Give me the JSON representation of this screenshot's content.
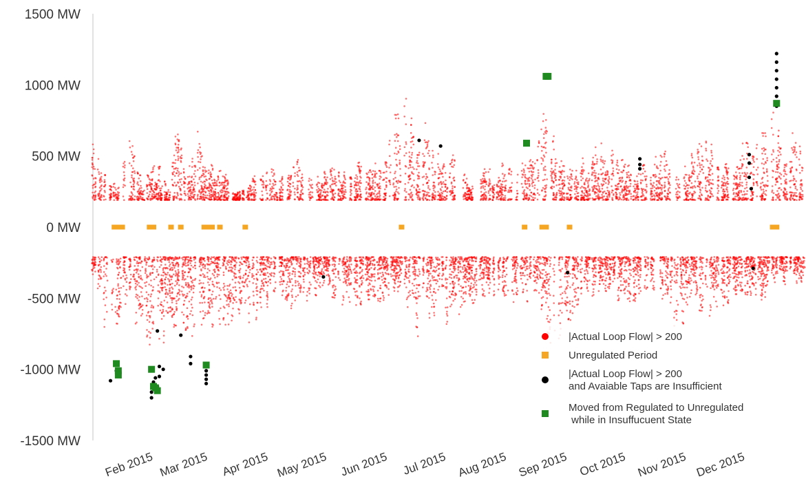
{
  "chart_data": {
    "type": "scatter",
    "title": "",
    "xlabel": "",
    "ylabel": "",
    "ylim": [
      -1500,
      1500
    ],
    "xlim": [
      "2015-01-01",
      "2015-12-31"
    ],
    "y_ticks": [
      {
        "value": 1500,
        "label": "1500 MW"
      },
      {
        "value": 1000,
        "label": "1000 MW"
      },
      {
        "value": 500,
        "label": "500 MW"
      },
      {
        "value": 0,
        "label": "0 MW"
      },
      {
        "value": -500,
        "label": "-500 MW"
      },
      {
        "value": -1000,
        "label": "-1000 MW"
      },
      {
        "value": -1500,
        "label": "-1500 MW"
      }
    ],
    "x_ticks": [
      {
        "date": "2015-02-01",
        "label": "Feb 2015"
      },
      {
        "date": "2015-03-01",
        "label": "Mar 2015"
      },
      {
        "date": "2015-04-01",
        "label": "Apr 2015"
      },
      {
        "date": "2015-05-01",
        "label": "May 2015"
      },
      {
        "date": "2015-06-01",
        "label": "Jun 2015"
      },
      {
        "date": "2015-07-01",
        "label": "Jul 2015"
      },
      {
        "date": "2015-08-01",
        "label": "Aug 2015"
      },
      {
        "date": "2015-09-01",
        "label": "Sep 2015"
      },
      {
        "date": "2015-10-01",
        "label": "Oct 2015"
      },
      {
        "date": "2015-11-01",
        "label": "Nov 2015"
      },
      {
        "date": "2015-12-01",
        "label": "Dec 2015"
      }
    ],
    "grid": false,
    "legend_position": "bottom-right",
    "series": [
      {
        "name": "|Actual Loop Flow| > 200",
        "color": "#ff0000",
        "marker": "circle",
        "note_density": "dense hourly points above +200 and below -200",
        "envelope_positive": [
          [
            "2015-01-01",
            700
          ],
          [
            "2015-01-05",
            540
          ],
          [
            "2015-01-10",
            330
          ],
          [
            "2015-01-15",
            370
          ],
          [
            "2015-01-20",
            750
          ],
          [
            "2015-01-26",
            330
          ],
          [
            "2015-02-03",
            480
          ],
          [
            "2015-02-08",
            300
          ],
          [
            "2015-02-12",
            880
          ],
          [
            "2015-02-18",
            340
          ],
          [
            "2015-02-24",
            730
          ],
          [
            "2015-03-01",
            460
          ],
          [
            "2015-03-07",
            480
          ],
          [
            "2015-03-14",
            260
          ],
          [
            "2015-03-22",
            320
          ],
          [
            "2015-03-29",
            480
          ],
          [
            "2015-04-06",
            380
          ],
          [
            "2015-04-15",
            500
          ],
          [
            "2015-04-24",
            360
          ],
          [
            "2015-05-03",
            480
          ],
          [
            "2015-05-12",
            430
          ],
          [
            "2015-05-21",
            560
          ],
          [
            "2015-05-28",
            420
          ],
          [
            "2015-06-04",
            860
          ],
          [
            "2015-06-08",
            1010
          ],
          [
            "2015-06-14",
            930
          ],
          [
            "2015-06-20",
            780
          ],
          [
            "2015-06-27",
            600
          ],
          [
            "2015-07-05",
            600
          ],
          [
            "2015-07-13",
            340
          ],
          [
            "2015-07-20",
            520
          ],
          [
            "2015-07-27",
            400
          ],
          [
            "2015-08-03",
            560
          ],
          [
            "2015-08-08",
            580
          ],
          [
            "2015-08-14",
            520
          ],
          [
            "2015-08-20",
            1070
          ],
          [
            "2015-08-26",
            620
          ],
          [
            "2015-09-01",
            500
          ],
          [
            "2015-09-07",
            440
          ],
          [
            "2015-09-14",
            660
          ],
          [
            "2015-09-21",
            580
          ],
          [
            "2015-09-28",
            640
          ],
          [
            "2015-10-06",
            420
          ],
          [
            "2015-10-14",
            480
          ],
          [
            "2015-10-20",
            570
          ],
          [
            "2015-10-28",
            380
          ],
          [
            "2015-11-05",
            630
          ],
          [
            "2015-11-12",
            780
          ],
          [
            "2015-11-19",
            470
          ],
          [
            "2015-11-26",
            540
          ],
          [
            "2015-12-02",
            640
          ],
          [
            "2015-12-09",
            720
          ],
          [
            "2015-12-16",
            900
          ],
          [
            "2015-12-22",
            690
          ],
          [
            "2015-12-29",
            720
          ]
        ],
        "envelope_negative": [
          [
            "2015-01-02",
            -400
          ],
          [
            "2015-01-06",
            -680
          ],
          [
            "2015-01-10",
            -900
          ],
          [
            "2015-01-15",
            -780
          ],
          [
            "2015-01-20",
            -600
          ],
          [
            "2015-01-26",
            -1000
          ],
          [
            "2015-02-01",
            -1100
          ],
          [
            "2015-02-05",
            -900
          ],
          [
            "2015-02-10",
            -770
          ],
          [
            "2015-02-15",
            -700
          ],
          [
            "2015-02-20",
            -800
          ],
          [
            "2015-02-24",
            -1000
          ],
          [
            "2015-03-01",
            -880
          ],
          [
            "2015-03-06",
            -680
          ],
          [
            "2015-03-12",
            -780
          ],
          [
            "2015-03-19",
            -700
          ],
          [
            "2015-03-25",
            -840
          ],
          [
            "2015-04-01",
            -660
          ],
          [
            "2015-04-09",
            -580
          ],
          [
            "2015-04-17",
            -620
          ],
          [
            "2015-04-24",
            -560
          ],
          [
            "2015-05-01",
            -500
          ],
          [
            "2015-05-08",
            -560
          ],
          [
            "2015-05-15",
            -620
          ],
          [
            "2015-05-22",
            -760
          ],
          [
            "2015-05-29",
            -720
          ],
          [
            "2015-06-05",
            -460
          ],
          [
            "2015-06-15",
            -800
          ],
          [
            "2015-06-22",
            -700
          ],
          [
            "2015-06-30",
            -700
          ],
          [
            "2015-07-08",
            -680
          ],
          [
            "2015-07-16",
            -660
          ],
          [
            "2015-07-24",
            -600
          ],
          [
            "2015-08-01",
            -540
          ],
          [
            "2015-08-09",
            -560
          ],
          [
            "2015-08-17",
            -520
          ],
          [
            "2015-08-24",
            -1010
          ],
          [
            "2015-08-30",
            -880
          ],
          [
            "2015-09-05",
            -600
          ],
          [
            "2015-09-12",
            -560
          ],
          [
            "2015-09-20",
            -500
          ],
          [
            "2015-09-27",
            -600
          ],
          [
            "2015-10-05",
            -520
          ],
          [
            "2015-10-13",
            -560
          ],
          [
            "2015-10-21",
            -600
          ],
          [
            "2015-10-28",
            -880
          ],
          [
            "2015-11-04",
            -600
          ],
          [
            "2015-11-12",
            -660
          ],
          [
            "2015-11-18",
            -620
          ],
          [
            "2015-11-25",
            -700
          ],
          [
            "2015-12-03",
            -640
          ],
          [
            "2015-12-10",
            -560
          ],
          [
            "2015-12-18",
            -400
          ],
          [
            "2015-12-25",
            -420
          ]
        ]
      },
      {
        "name": "Unregulated Period",
        "color": "#f5a623",
        "marker": "square",
        "points": [
          [
            "2015-01-12",
            0
          ],
          [
            "2015-01-14",
            0
          ],
          [
            "2015-01-16",
            0
          ],
          [
            "2015-01-30",
            0
          ],
          [
            "2015-02-01",
            0
          ],
          [
            "2015-02-10",
            0
          ],
          [
            "2015-02-15",
            0
          ],
          [
            "2015-02-27",
            0
          ],
          [
            "2015-03-01",
            0
          ],
          [
            "2015-03-03",
            0
          ],
          [
            "2015-03-07",
            0
          ],
          [
            "2015-03-20",
            0
          ],
          [
            "2015-06-08",
            0
          ],
          [
            "2015-08-10",
            0
          ],
          [
            "2015-08-19",
            0
          ],
          [
            "2015-08-21",
            0
          ],
          [
            "2015-09-02",
            0
          ],
          [
            "2015-12-15",
            0
          ],
          [
            "2015-12-17",
            0
          ]
        ]
      },
      {
        "name": "|Actual Loop Flow| > 200\nand Avaiable Taps are Insufficient",
        "color": "#000000",
        "marker": "circle",
        "points": [
          [
            "2015-01-10",
            -1080
          ],
          [
            "2015-01-13",
            -1010
          ],
          [
            "2015-01-31",
            -1200
          ],
          [
            "2015-01-31",
            -1160
          ],
          [
            "2015-02-01",
            -1130
          ],
          [
            "2015-02-01",
            -1090
          ],
          [
            "2015-02-02",
            -1060
          ],
          [
            "2015-02-03",
            -1120
          ],
          [
            "2015-02-04",
            -1050
          ],
          [
            "2015-02-04",
            -980
          ],
          [
            "2015-02-03",
            -730
          ],
          [
            "2015-02-06",
            -1000
          ],
          [
            "2015-02-15",
            -760
          ],
          [
            "2015-02-20",
            -910
          ],
          [
            "2015-02-20",
            -960
          ],
          [
            "2015-02-28",
            -1010
          ],
          [
            "2015-02-28",
            -1040
          ],
          [
            "2015-02-28",
            -1070
          ],
          [
            "2015-02-28",
            -1100
          ],
          [
            "2015-04-29",
            -350
          ],
          [
            "2015-06-17",
            610
          ],
          [
            "2015-06-28",
            570
          ],
          [
            "2015-09-01",
            -320
          ],
          [
            "2015-10-08",
            480
          ],
          [
            "2015-10-08",
            440
          ],
          [
            "2015-10-08",
            410
          ],
          [
            "2015-12-03",
            510
          ],
          [
            "2015-12-03",
            450
          ],
          [
            "2015-12-03",
            350
          ],
          [
            "2015-12-04",
            270
          ],
          [
            "2015-12-05",
            -290
          ],
          [
            "2015-12-17",
            1220
          ],
          [
            "2015-12-17",
            1160
          ],
          [
            "2015-12-17",
            1100
          ],
          [
            "2015-12-17",
            1040
          ],
          [
            "2015-12-17",
            980
          ],
          [
            "2015-12-17",
            920
          ],
          [
            "2015-12-17",
            850
          ]
        ]
      },
      {
        "name": "Moved from Regulated to Unregulated\n while in Insuffucuent State",
        "color": "#1f8a1f",
        "marker": "square",
        "points": [
          [
            "2015-01-13",
            -960
          ],
          [
            "2015-01-14",
            -1010
          ],
          [
            "2015-01-14",
            -1040
          ],
          [
            "2015-01-31",
            -1000
          ],
          [
            "2015-02-01",
            -1120
          ],
          [
            "2015-02-02",
            -1130
          ],
          [
            "2015-02-03",
            -1150
          ],
          [
            "2015-02-28",
            -970
          ],
          [
            "2015-08-11",
            590
          ],
          [
            "2015-08-21",
            1060
          ],
          [
            "2015-08-22",
            1060
          ],
          [
            "2015-12-17",
            870
          ]
        ]
      }
    ]
  }
}
